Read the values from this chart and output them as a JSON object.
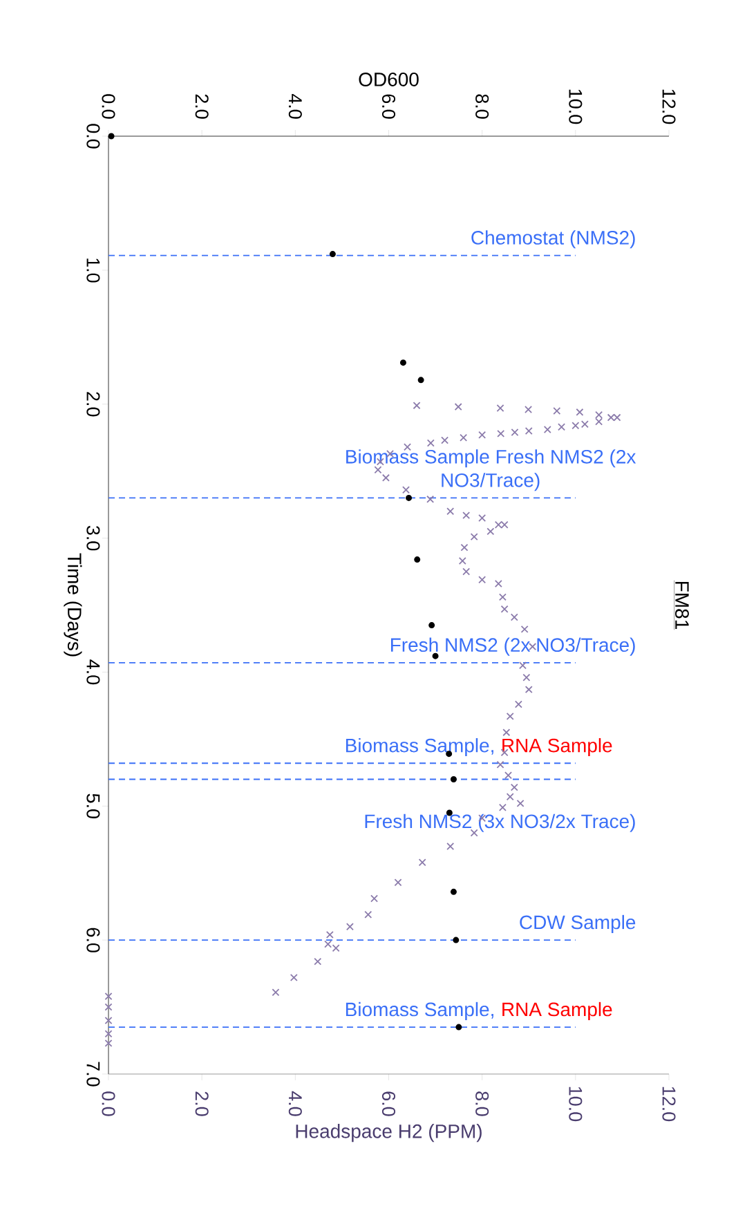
{
  "chart_data": {
    "type": "scatter",
    "title": "FM81",
    "xlabel": "Headspace H2 (PPM)",
    "x2label": "OD600",
    "ylabel": "Time (Days)",
    "ylim": [
      7,
      0
    ],
    "yticks": [
      {
        "value": 0,
        "label": "0.0"
      },
      {
        "value": 1,
        "label": "1.0"
      },
      {
        "value": 2,
        "label": "2.0"
      },
      {
        "value": 3,
        "label": "3.0"
      },
      {
        "value": 4,
        "label": "4.0"
      },
      {
        "value": 5,
        "label": "5.0"
      },
      {
        "value": 6,
        "label": "6.0"
      },
      {
        "value": 7,
        "label": "7.0"
      }
    ],
    "x2lim": [
      0,
      12
    ],
    "x2ticks": [
      {
        "value": 0,
        "label": "0.0"
      },
      {
        "value": 2,
        "label": "2.0"
      },
      {
        "value": 4,
        "label": "4.0"
      },
      {
        "value": 6,
        "label": "6.0"
      },
      {
        "value": 8,
        "label": "8.0"
      },
      {
        "value": 10,
        "label": "10.0"
      },
      {
        "value": 12,
        "label": "12.0"
      }
    ],
    "xlim": [
      0,
      12
    ],
    "xticks": [
      {
        "value": 0,
        "label": "0.0"
      },
      {
        "value": 2,
        "label": "2.0"
      },
      {
        "value": 4,
        "label": "4.0"
      },
      {
        "value": 6,
        "label": "6.0"
      },
      {
        "value": 8,
        "label": "8.0"
      },
      {
        "value": 10,
        "label": "10.0"
      },
      {
        "value": 12,
        "label": "12.0"
      }
    ],
    "series": [
      {
        "color": "#000000",
        "marker": "circle",
        "axis": "x2",
        "values": [
          0,
          0.88,
          1.69,
          1.82,
          2.7,
          3.16,
          3.65,
          3.88,
          4.61,
          4.8,
          5.05,
          5.64,
          6.0,
          6.65
        ],
        "x": [
          0.06,
          4.8,
          6.31,
          6.69,
          6.43,
          6.61,
          6.92,
          7.0,
          7.29,
          7.39,
          7.3,
          7.39,
          7.44,
          7.5
        ]
      },
      {
        "color": "#8b7bab",
        "marker": "cross",
        "values": [
          2.01,
          2.02,
          2.03,
          2.04,
          2.05,
          2.06,
          2.08,
          2.1,
          2.1,
          2.13,
          2.15,
          2.16,
          2.17,
          2.19,
          2.2,
          2.21,
          2.22,
          2.23,
          2.25,
          2.27,
          2.29,
          2.32,
          2.37,
          2.43,
          2.49,
          2.55,
          2.64,
          2.71,
          2.8,
          2.83,
          2.85,
          2.9,
          2.9,
          2.95,
          2.99,
          3.07,
          3.17,
          3.25,
          3.31,
          3.34,
          3.44,
          3.53,
          3.59,
          3.68,
          3.81,
          3.95,
          4.04,
          4.13,
          4.24,
          4.33,
          4.45,
          4.6,
          4.69,
          4.77,
          4.86,
          4.93,
          4.98,
          5.01,
          5.09,
          5.2,
          5.3,
          5.42,
          5.57,
          5.69,
          5.81,
          5.9,
          5.96,
          6.03,
          6.06,
          6.16,
          6.28,
          6.39,
          6.42,
          6.5,
          6.6,
          6.7,
          6.77
        ],
        "x": [
          6.6,
          7.49,
          8.39,
          8.99,
          9.6,
          10.09,
          10.5,
          10.76,
          10.89,
          10.5,
          10.2,
          10.0,
          9.7,
          9.4,
          9.0,
          8.7,
          8.4,
          8.0,
          7.6,
          7.2,
          6.9,
          6.4,
          6.03,
          5.82,
          5.77,
          5.94,
          6.37,
          6.89,
          7.32,
          7.66,
          8.0,
          8.35,
          8.48,
          8.18,
          7.83,
          7.62,
          7.58,
          7.66,
          8.0,
          8.35,
          8.44,
          8.48,
          8.69,
          8.91,
          9.08,
          8.87,
          8.95,
          9.0,
          8.78,
          8.6,
          8.52,
          8.48,
          8.39,
          8.56,
          8.69,
          8.6,
          8.82,
          8.44,
          8.0,
          7.83,
          7.32,
          6.72,
          6.2,
          5.69,
          5.56,
          5.17,
          4.74,
          4.7,
          4.87,
          4.48,
          3.97,
          3.58,
          0.0,
          0.0,
          0.0,
          0.0,
          0.0
        ]
      }
    ],
    "ref_lines": [
      {
        "axis": "y",
        "value": 0.89,
        "label": "Chemostat (NMS2)",
        "color": "#3a6ff7",
        "line_style": "dashed"
      },
      {
        "axis": "y",
        "value": 2.7,
        "label": "Biomass Sample Fresh NMS2 (2x NO3/Trace)",
        "color": "#3a6ff7",
        "line_style": "dashed"
      },
      {
        "axis": "y",
        "value": 3.93,
        "label": "Fresh NMS2 (2x NO3/Trace)",
        "color": "#3a6ff7",
        "line_style": "dashed"
      },
      {
        "axis": "y",
        "value": 4.68,
        "label": "Biomass Sample,",
        "color": "#3a6ff7",
        "line_style": "dashed"
      },
      {
        "axis": "y",
        "value": 4.8,
        "label": "Fresh NMS2 (3x NO3/2x Trace)",
        "color": "#3a6ff7",
        "line_style": "dashed"
      },
      {
        "axis": "y",
        "value": 6.0,
        "label": "CDW Sample",
        "color": "#3a6ff7",
        "line_style": "dashed"
      },
      {
        "axis": "y",
        "value": 6.65,
        "label": "Biomass Sample,",
        "color": "#3a6ff7",
        "line_style": "dashed"
      }
    ],
    "annotations": [
      {
        "text": "RNA Sample",
        "x": 8.4,
        "y": 4.68
      },
      {
        "text": "RNA Sample",
        "x": 8.4,
        "y": 6.65
      }
    ],
    "grid": false
  }
}
